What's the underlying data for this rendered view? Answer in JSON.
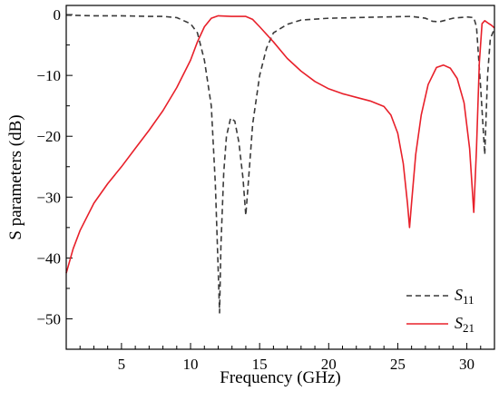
{
  "chart_data": {
    "type": "line",
    "title": "",
    "xlabel": "Frequency (GHz)",
    "ylabel": "S parameters (dB)",
    "xlim": [
      1,
      32
    ],
    "ylim": [
      -55,
      1.5
    ],
    "xticks": [
      5,
      10,
      15,
      20,
      25,
      30
    ],
    "yticks": [
      0,
      -10,
      -20,
      -30,
      -40,
      -50
    ],
    "grid": false,
    "legend": "bottom-right",
    "series": [
      {
        "name": "S",
        "subscript": "11",
        "style": "dashed",
        "color": "#3a3a3a",
        "points": [
          [
            1,
            -0.1
          ],
          [
            3,
            -0.2
          ],
          [
            5,
            -0.2
          ],
          [
            7,
            -0.3
          ],
          [
            8,
            -0.3
          ],
          [
            9,
            -0.5
          ],
          [
            10,
            -1.5
          ],
          [
            10.5,
            -3
          ],
          [
            11,
            -7.5
          ],
          [
            11.5,
            -15
          ],
          [
            11.8,
            -28
          ],
          [
            12,
            -42
          ],
          [
            12.1,
            -49
          ],
          [
            12.2,
            -38
          ],
          [
            12.4,
            -26
          ],
          [
            12.6,
            -20
          ],
          [
            12.9,
            -17
          ],
          [
            13.2,
            -17.5
          ],
          [
            13.5,
            -21
          ],
          [
            13.8,
            -27
          ],
          [
            14,
            -33
          ],
          [
            14.2,
            -27
          ],
          [
            14.5,
            -18
          ],
          [
            15,
            -10
          ],
          [
            15.5,
            -5.5
          ],
          [
            16,
            -3
          ],
          [
            17,
            -1.6
          ],
          [
            18,
            -0.9
          ],
          [
            20,
            -0.6
          ],
          [
            22,
            -0.5
          ],
          [
            24,
            -0.4
          ],
          [
            26,
            -0.3
          ],
          [
            27,
            -0.6
          ],
          [
            27.5,
            -1.1
          ],
          [
            28,
            -1.2
          ],
          [
            28.5,
            -0.9
          ],
          [
            29,
            -0.6
          ],
          [
            30,
            -0.4
          ],
          [
            30.5,
            -0.5
          ],
          [
            30.7,
            -2
          ],
          [
            31,
            -12
          ],
          [
            31.3,
            -23
          ],
          [
            31.5,
            -10
          ],
          [
            31.7,
            -4
          ],
          [
            32,
            -2.3
          ]
        ]
      },
      {
        "name": "S",
        "subscript": "21",
        "style": "solid",
        "color": "#e8202a",
        "points": [
          [
            1,
            -42.5
          ],
          [
            1.5,
            -38.5
          ],
          [
            2,
            -35.5
          ],
          [
            3,
            -31
          ],
          [
            4,
            -27.8
          ],
          [
            5,
            -25
          ],
          [
            6,
            -22
          ],
          [
            7,
            -19
          ],
          [
            8,
            -15.8
          ],
          [
            9,
            -12
          ],
          [
            10,
            -7.5
          ],
          [
            10.5,
            -4.5
          ],
          [
            11,
            -2
          ],
          [
            11.5,
            -0.6
          ],
          [
            12,
            -0.2
          ],
          [
            13,
            -0.3
          ],
          [
            14,
            -0.3
          ],
          [
            14.5,
            -0.8
          ],
          [
            15,
            -2
          ],
          [
            16,
            -4.5
          ],
          [
            17,
            -7.2
          ],
          [
            18,
            -9.3
          ],
          [
            19,
            -11
          ],
          [
            20,
            -12.2
          ],
          [
            21,
            -13
          ],
          [
            22,
            -13.6
          ],
          [
            23,
            -14.2
          ],
          [
            24,
            -15.1
          ],
          [
            24.5,
            -16.5
          ],
          [
            25,
            -19.5
          ],
          [
            25.4,
            -24.5
          ],
          [
            25.7,
            -31
          ],
          [
            25.85,
            -35
          ],
          [
            26,
            -31
          ],
          [
            26.3,
            -23
          ],
          [
            26.7,
            -16.5
          ],
          [
            27.2,
            -11.5
          ],
          [
            27.8,
            -8.7
          ],
          [
            28.3,
            -8.3
          ],
          [
            28.8,
            -8.8
          ],
          [
            29.3,
            -10.5
          ],
          [
            29.8,
            -14.5
          ],
          [
            30.2,
            -22
          ],
          [
            30.5,
            -32.5
          ],
          [
            30.7,
            -22
          ],
          [
            30.9,
            -8
          ],
          [
            31.1,
            -1.5
          ],
          [
            31.3,
            -1
          ],
          [
            31.6,
            -1.5
          ],
          [
            31.8,
            -1.8
          ],
          [
            32,
            -2.2
          ]
        ]
      }
    ]
  }
}
